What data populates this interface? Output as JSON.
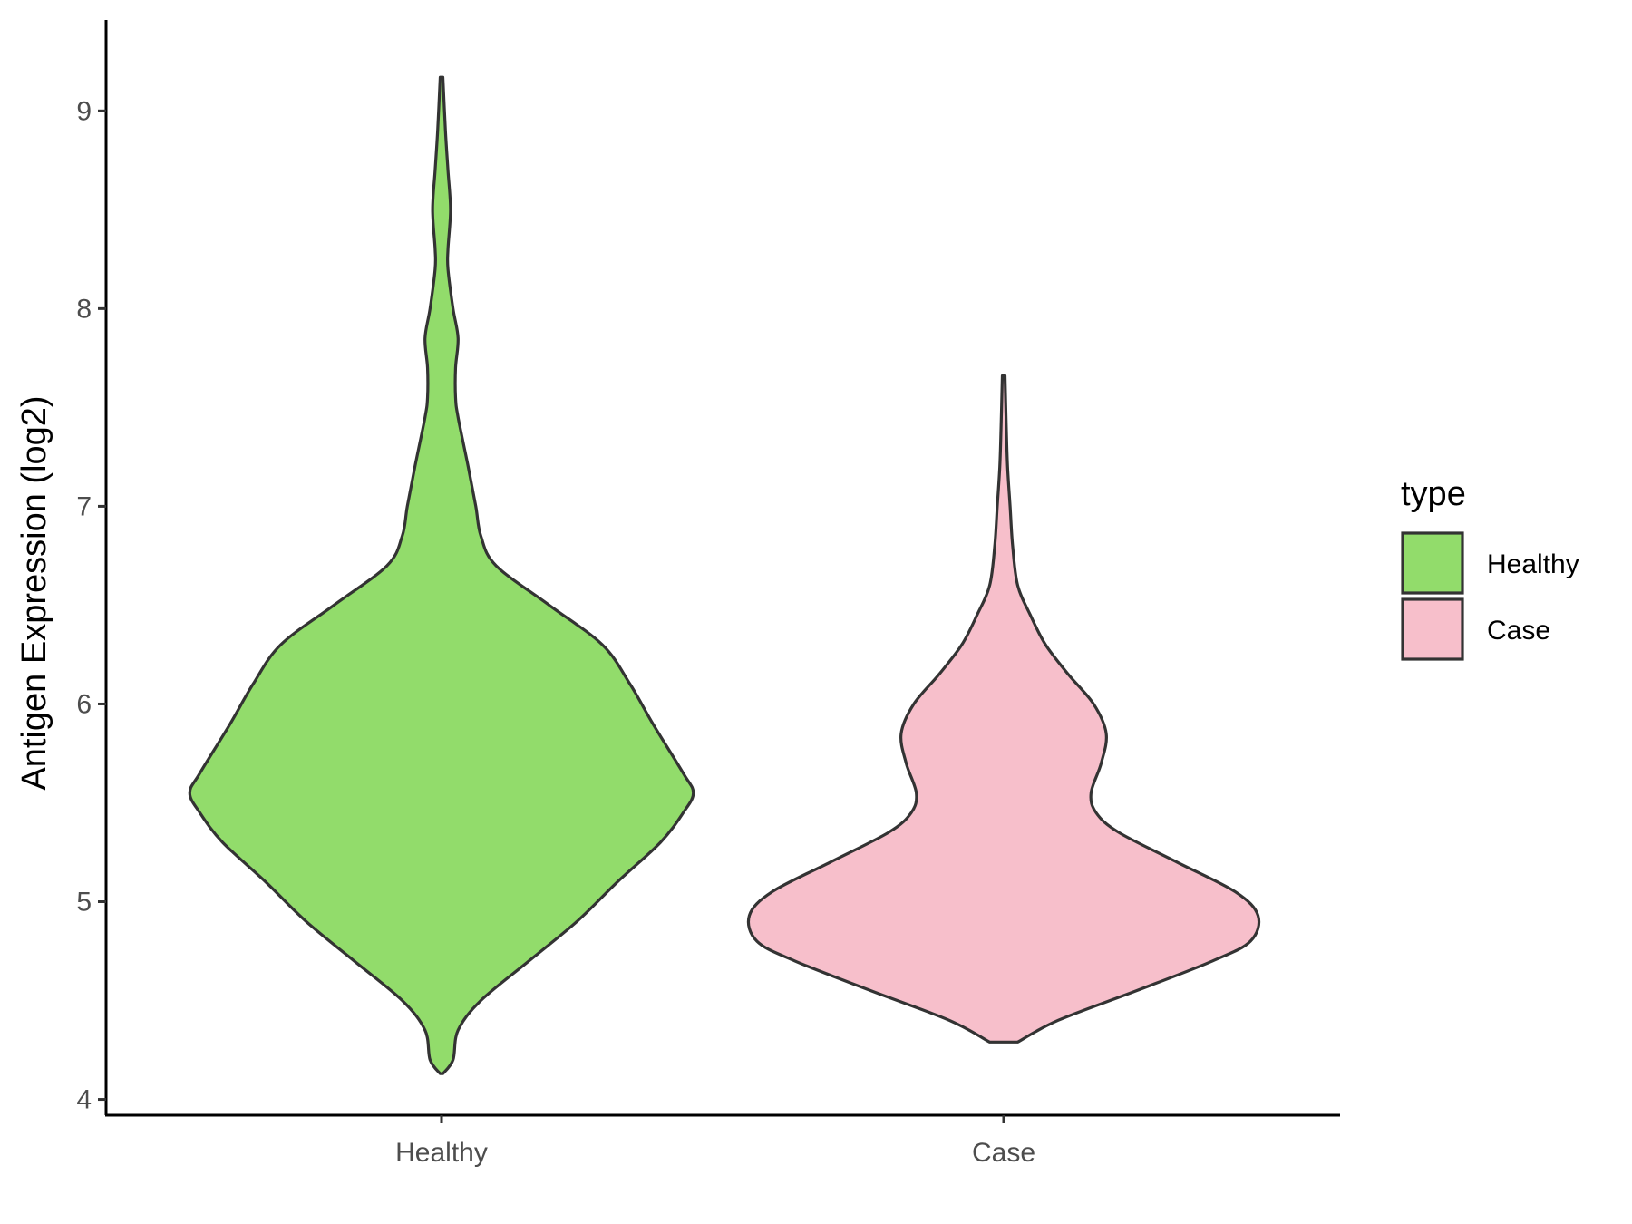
{
  "chart_data": {
    "type": "violin",
    "title": "",
    "xlabel": "",
    "ylabel": "Antigen Expression (log2)",
    "ylim": [
      3.92,
      9.46
    ],
    "yticks": [
      4,
      5,
      6,
      7,
      8,
      9
    ],
    "ytick_labels": [
      "4",
      "5",
      "6",
      "7",
      "8",
      "9"
    ],
    "categories": [
      "Healthy",
      "Case"
    ],
    "grid": false,
    "legend": {
      "title": "type",
      "position": "right",
      "entries": [
        {
          "label": "Healthy",
          "color": "#92DC6B"
        },
        {
          "label": "Case",
          "color": "#F7BFCB"
        }
      ]
    },
    "series": [
      {
        "name": "Healthy",
        "color": "#92DC6B",
        "profile": [
          [
            4.13,
            0.0
          ],
          [
            4.2,
            0.04
          ],
          [
            4.35,
            0.06
          ],
          [
            4.5,
            0.15
          ],
          [
            4.7,
            0.34
          ],
          [
            4.9,
            0.53
          ],
          [
            5.1,
            0.69
          ],
          [
            5.3,
            0.86
          ],
          [
            5.45,
            0.95
          ],
          [
            5.55,
            0.99
          ],
          [
            5.65,
            0.95
          ],
          [
            5.9,
            0.83
          ],
          [
            6.1,
            0.74
          ],
          [
            6.3,
            0.63
          ],
          [
            6.5,
            0.42
          ],
          [
            6.7,
            0.21
          ],
          [
            6.85,
            0.15
          ],
          [
            7.0,
            0.13
          ],
          [
            7.2,
            0.1
          ],
          [
            7.45,
            0.06
          ],
          [
            7.55,
            0.05
          ],
          [
            7.7,
            0.05
          ],
          [
            7.85,
            0.06
          ],
          [
            8.0,
            0.04
          ],
          [
            8.2,
            0.02
          ],
          [
            8.3,
            0.02
          ],
          [
            8.5,
            0.03
          ],
          [
            8.7,
            0.02
          ],
          [
            8.9,
            0.01
          ],
          [
            9.17,
            0.0
          ]
        ]
      },
      {
        "name": "Case",
        "color": "#F7BFCB",
        "profile": [
          [
            4.29,
            0.05
          ],
          [
            4.4,
            0.21
          ],
          [
            4.55,
            0.52
          ],
          [
            4.7,
            0.82
          ],
          [
            4.8,
            0.97
          ],
          [
            4.93,
            1.0
          ],
          [
            5.05,
            0.91
          ],
          [
            5.2,
            0.68
          ],
          [
            5.35,
            0.45
          ],
          [
            5.45,
            0.36
          ],
          [
            5.55,
            0.34
          ],
          [
            5.7,
            0.38
          ],
          [
            5.85,
            0.4
          ],
          [
            6.0,
            0.35
          ],
          [
            6.15,
            0.25
          ],
          [
            6.3,
            0.16
          ],
          [
            6.45,
            0.1
          ],
          [
            6.6,
            0.05
          ],
          [
            6.8,
            0.03
          ],
          [
            7.0,
            0.02
          ],
          [
            7.2,
            0.01
          ],
          [
            7.4,
            0.005
          ],
          [
            7.66,
            0.0
          ]
        ]
      }
    ]
  }
}
